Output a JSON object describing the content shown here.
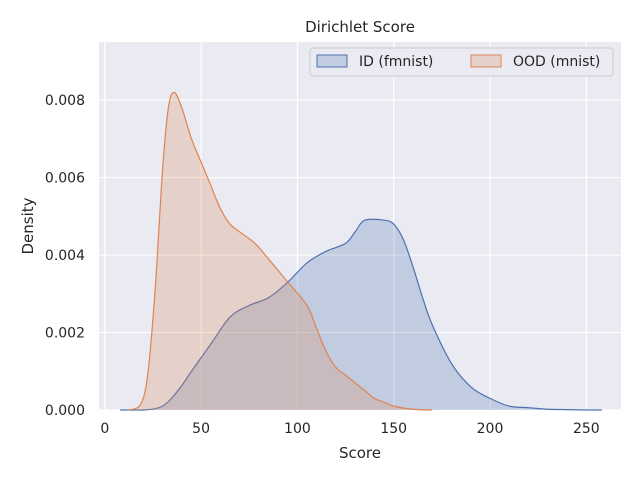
{
  "chart_data": {
    "type": "area",
    "title": "Dirichlet Score",
    "xlabel": "Score",
    "ylabel": "Density",
    "xlim": [
      -3,
      268
    ],
    "ylim": [
      0,
      0.0095
    ],
    "xticks": [
      0,
      50,
      100,
      150,
      200,
      250
    ],
    "xtick_labels": [
      "0",
      "50",
      "100",
      "150",
      "200",
      "250"
    ],
    "yticks": [
      0,
      0.002,
      0.004,
      0.006,
      0.008
    ],
    "ytick_labels": [
      "0.000",
      "0.002",
      "0.004",
      "0.006",
      "0.008"
    ],
    "grid": true,
    "legend_position": "top-right",
    "legend_columns": 2,
    "series": [
      {
        "name": "ID (fmnist)",
        "color": "#4c72b0",
        "x": [
          8,
          20,
          30,
          38,
          45,
          55,
          65,
          75,
          85,
          95,
          105,
          115,
          125,
          130,
          135,
          145,
          150,
          155,
          160,
          165,
          170,
          180,
          190,
          200,
          210,
          220,
          230,
          240,
          250,
          258
        ],
        "y": [
          0,
          0.0,
          0.0001,
          0.0005,
          0.001,
          0.0017,
          0.0024,
          0.0027,
          0.0029,
          0.0033,
          0.0038,
          0.0041,
          0.0043,
          0.0046,
          0.0049,
          0.0049,
          0.0048,
          0.0044,
          0.0037,
          0.0029,
          0.0022,
          0.0012,
          0.0006,
          0.0003,
          0.0001,
          6e-05,
          2e-05,
          1e-05,
          0,
          0
        ]
      },
      {
        "name": "OOD (mnist)",
        "color": "#dd8452",
        "x": [
          12,
          18,
          22,
          26,
          30,
          33,
          36,
          40,
          45,
          50,
          55,
          60,
          65,
          70,
          78,
          85,
          95,
          105,
          110,
          115,
          120,
          125,
          135,
          140,
          145,
          150,
          160,
          170
        ],
        "y": [
          0,
          0.0001,
          0.0008,
          0.003,
          0.0062,
          0.0078,
          0.0082,
          0.0078,
          0.007,
          0.0064,
          0.0058,
          0.0052,
          0.0048,
          0.0046,
          0.0043,
          0.0039,
          0.0033,
          0.0027,
          0.0021,
          0.0015,
          0.0011,
          0.0009,
          0.0005,
          0.0003,
          0.0002,
          0.0001,
          2e-05,
          0
        ]
      }
    ]
  }
}
